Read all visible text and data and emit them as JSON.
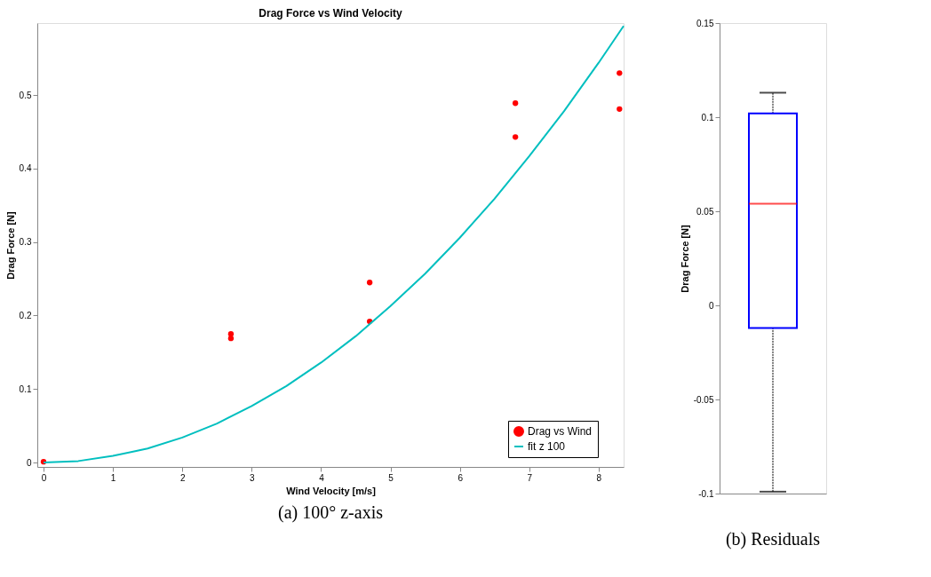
{
  "chart_data": [
    {
      "type": "scatter",
      "title": "Drag Force vs Wind Velocity",
      "xlabel": "Wind Velocity [m/s]",
      "ylabel": "Drag Force [N]",
      "annotations": [
        "(a) 100° z-axis"
      ],
      "x": [
        0,
        2.7,
        2.7,
        4.7,
        4.7,
        6.8,
        6.8,
        8.3,
        8.3
      ],
      "series": [
        {
          "name": "Drag vs Wind",
          "color": "#ff0000",
          "values": [
            0.001,
            0.175,
            0.169,
            0.245,
            0.192,
            0.489,
            0.443,
            0.53,
            0.481
          ]
        },
        {
          "name": "fit z 100",
          "type": "line",
          "marker": "none",
          "color": "#00bfbf",
          "x": [
            0,
            0.5,
            1,
            1.5,
            2,
            2.5,
            3,
            3.5,
            4,
            4.5,
            5,
            5.5,
            6,
            6.5,
            7,
            7.5,
            8,
            8.36
          ],
          "values": [
            0,
            0.002,
            0.009,
            0.019,
            0.034,
            0.053,
            0.077,
            0.104,
            0.136,
            0.172,
            0.213,
            0.257,
            0.306,
            0.359,
            0.417,
            0.478,
            0.544,
            0.594
          ]
        }
      ],
      "xlim": [
        -0.09,
        8.36
      ],
      "xticks": [
        0,
        1,
        2,
        3,
        4,
        5,
        6,
        7,
        8
      ],
      "ylim": [
        -0.006,
        0.598
      ],
      "yticks": [
        0,
        0.1,
        0.2,
        0.3,
        0.4,
        0.5
      ],
      "marker": "circle",
      "legend": "bottom right",
      "grid": false
    },
    {
      "type": "box",
      "ylabel": "Drag Force [N]",
      "annotations": [
        "(b) Residuals"
      ],
      "categories": [
        null
      ],
      "boxes": [
        {
          "low": -0.099,
          "q1": -0.012,
          "median": 0.054,
          "q3": 0.102,
          "high": 0.113
        }
      ],
      "ylim": [
        -0.1,
        0.15
      ],
      "yticks": [
        -0.1,
        -0.05,
        0,
        0.05,
        0.1,
        0.15
      ],
      "tick_labels": "y",
      "grid": false
    }
  ]
}
